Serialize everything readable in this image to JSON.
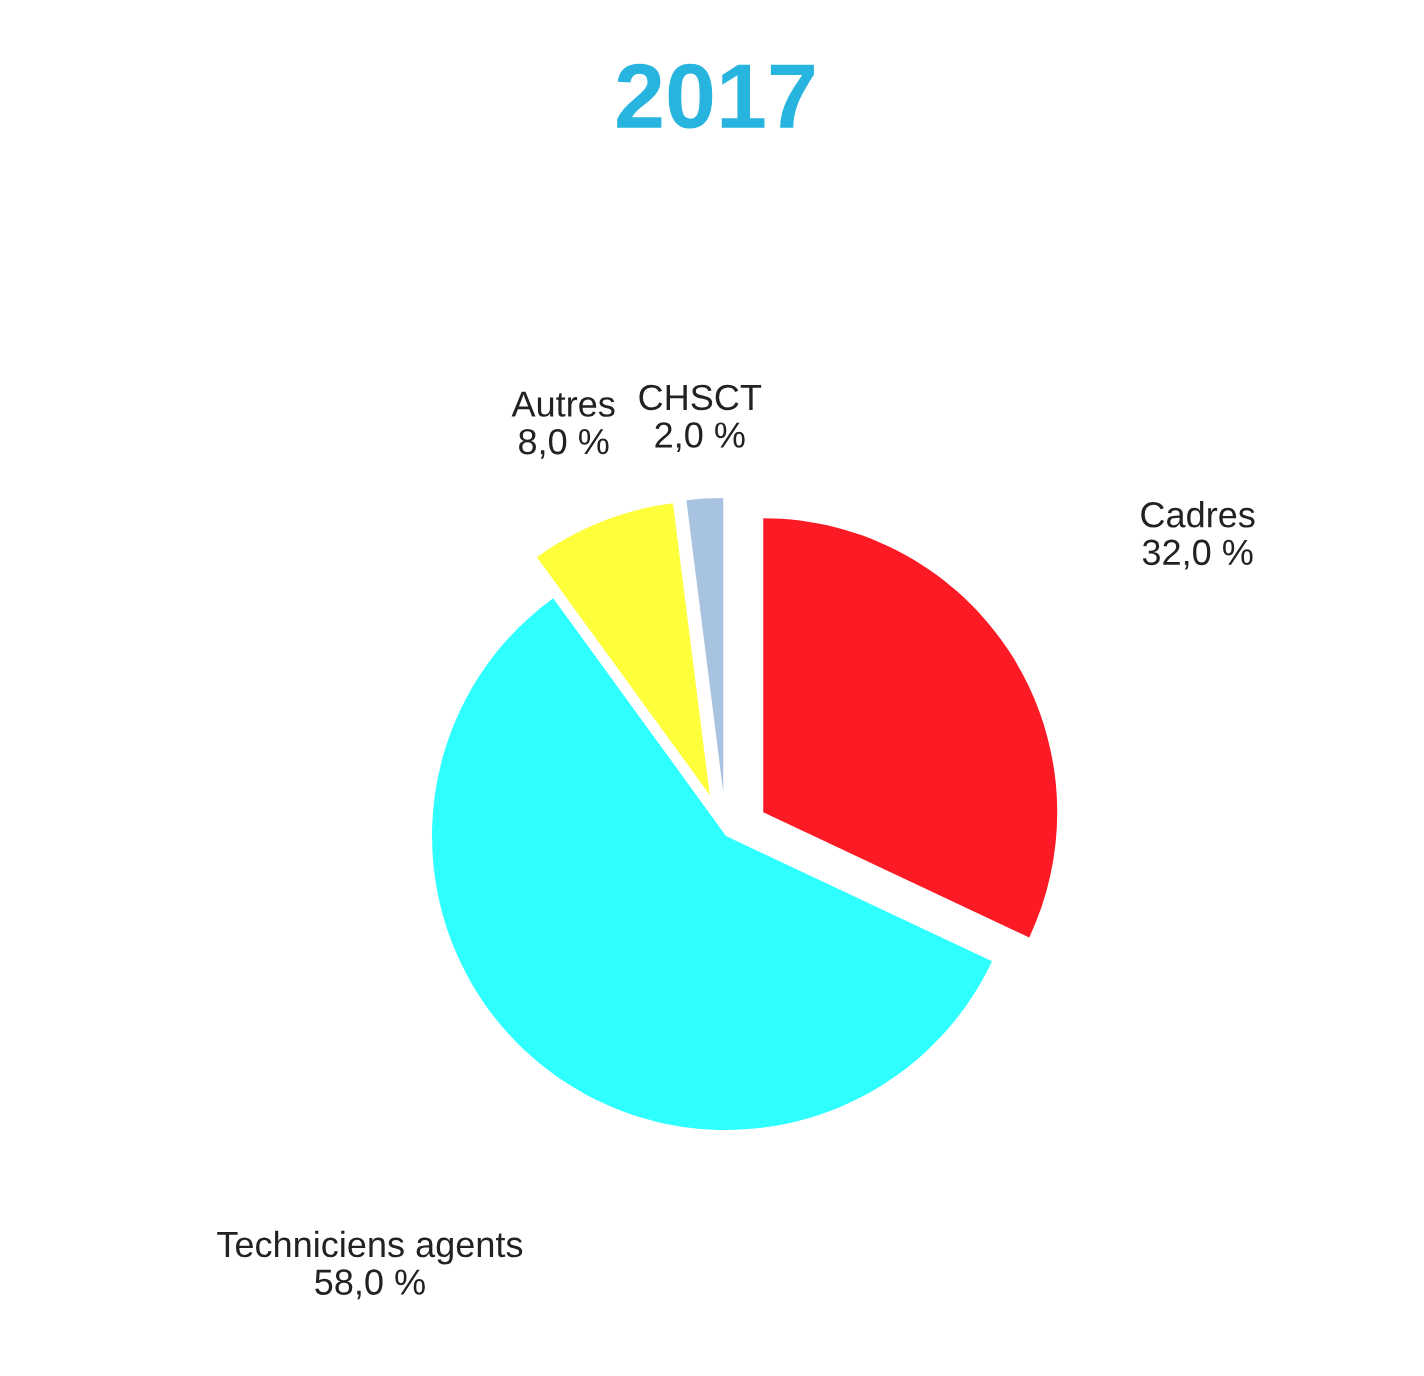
{
  "chart_data": {
    "type": "pie",
    "title": "2017",
    "categories": [
      "Cadres",
      "Techniciens agents",
      "Autres",
      "CHSCT"
    ],
    "values": [
      32,
      58,
      8,
      2
    ],
    "colors": [
      "#fc1a24",
      "#2effff",
      "#fefe3a",
      "#a8c3e0"
    ],
    "value_labels": [
      "32,0 %",
      "58,0 %",
      "8,0 %",
      "2,0 %"
    ]
  }
}
